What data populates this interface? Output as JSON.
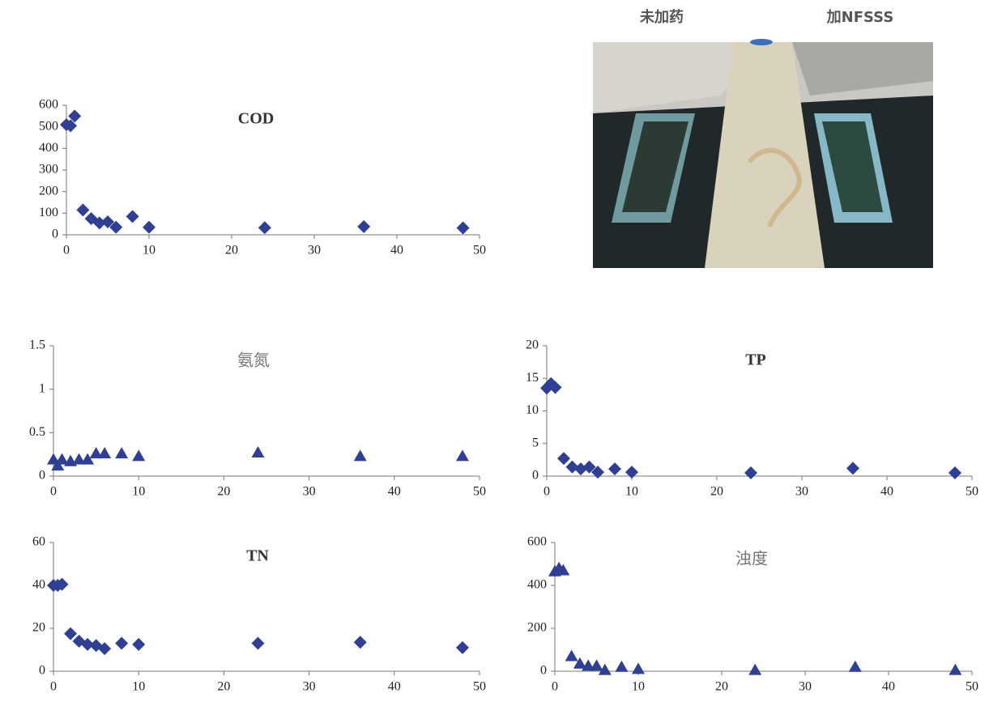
{
  "photo": {
    "labels": [
      "未加药",
      "加NFSSS"
    ]
  },
  "chart_data": [
    {
      "type": "scatter",
      "title": "COD",
      "marker": "diamond",
      "color": "#2e3f94",
      "x": [
        0,
        0.5,
        1,
        2,
        3,
        4,
        5,
        6,
        8,
        10,
        24,
        36,
        48
      ],
      "values": [
        510,
        505,
        550,
        115,
        75,
        55,
        60,
        35,
        85,
        35,
        33,
        38,
        32
      ],
      "xlim": [
        0,
        50
      ],
      "xticks": [
        0,
        10,
        20,
        30,
        40,
        50
      ],
      "ylim": [
        0,
        600
      ],
      "yticks": [
        0,
        100,
        200,
        300,
        400,
        500,
        600
      ],
      "grid": false
    },
    {
      "type": "scatter",
      "title": "氨氮",
      "marker": "triangle",
      "color": "#2e3f94",
      "x": [
        0,
        0.5,
        1,
        2,
        3,
        4,
        5,
        6,
        8,
        10,
        24,
        36,
        48
      ],
      "values": [
        0.19,
        0.12,
        0.19,
        0.17,
        0.19,
        0.19,
        0.26,
        0.26,
        0.26,
        0.23,
        0.27,
        0.23,
        0.23
      ],
      "xlim": [
        0,
        50
      ],
      "xticks": [
        0,
        10,
        20,
        30,
        40,
        50
      ],
      "ylim": [
        0,
        1.5
      ],
      "yticks": [
        0,
        0.5,
        1,
        1.5
      ],
      "grid": false
    },
    {
      "type": "scatter",
      "title": "TP",
      "marker": "diamond",
      "color": "#2e3f94",
      "x": [
        0,
        0.5,
        1,
        2,
        3,
        4,
        5,
        6,
        8,
        10,
        24,
        36,
        48
      ],
      "values": [
        13.5,
        14.2,
        13.6,
        2.7,
        1.4,
        1.1,
        1.4,
        0.6,
        1.1,
        0.6,
        0.5,
        1.2,
        0.5
      ],
      "xlim": [
        0,
        50
      ],
      "xticks": [
        0,
        10,
        20,
        30,
        40,
        50
      ],
      "ylim": [
        0,
        20
      ],
      "yticks": [
        0,
        5,
        10,
        15,
        20
      ],
      "grid": false
    },
    {
      "type": "scatter",
      "title": "TN",
      "marker": "diamond",
      "color": "#2e3f94",
      "x": [
        0,
        0.5,
        1,
        2,
        3,
        4,
        5,
        6,
        8,
        10,
        24,
        36,
        48
      ],
      "values": [
        40,
        40,
        40.5,
        17.5,
        14,
        12.5,
        12,
        10.5,
        13,
        12.5,
        13,
        13.5,
        11
      ],
      "xlim": [
        0,
        50
      ],
      "xticks": [
        0,
        10,
        20,
        30,
        40,
        50
      ],
      "ylim": [
        0,
        60
      ],
      "yticks": [
        0,
        20,
        40,
        60
      ],
      "grid": false
    },
    {
      "type": "scatter",
      "title": "浊度",
      "marker": "triangle",
      "color": "#2e3f94",
      "x": [
        0,
        0.5,
        1,
        2,
        3,
        4,
        5,
        6,
        8,
        10,
        24,
        36,
        48
      ],
      "values": [
        465,
        480,
        470,
        70,
        35,
        25,
        25,
        5,
        20,
        10,
        5,
        20,
        5
      ],
      "xlim": [
        0,
        50
      ],
      "xticks": [
        0,
        10,
        20,
        30,
        40,
        50
      ],
      "ylim": [
        0,
        600
      ],
      "yticks": [
        0,
        200,
        400,
        600
      ],
      "grid": false
    }
  ]
}
